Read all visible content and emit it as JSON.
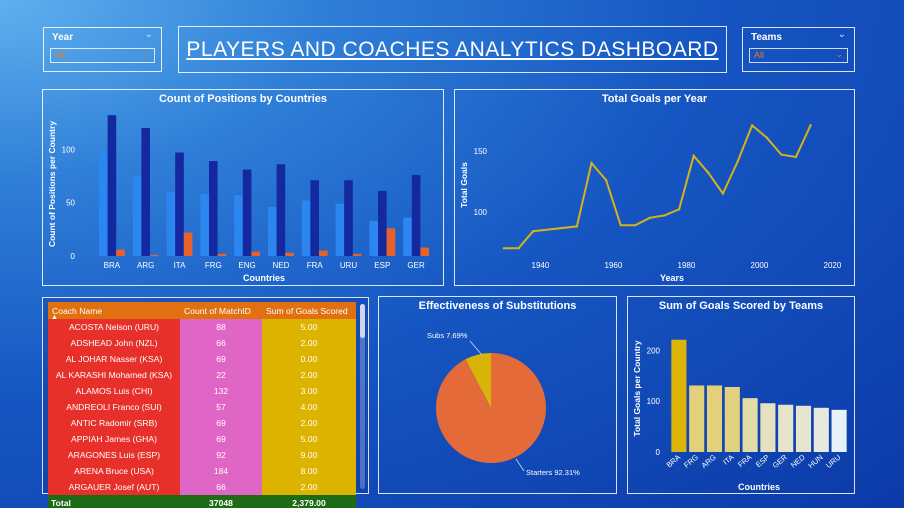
{
  "title": "PLAYERS AND COACHES ANALYTICS DASHBOARD",
  "slicers": {
    "year": {
      "label": "Year",
      "value": "All"
    },
    "teams": {
      "label": "Teams",
      "value": "All"
    }
  },
  "colors": {
    "bar_light": "#2b86f0",
    "bar_dark": "#1428a0",
    "bar_orange": "#e8612a",
    "line_gold": "#d4b21a",
    "pie_orange": "#e56a3a",
    "pie_gold": "#d9b408"
  },
  "positions_chart": {
    "title": "Count of Positions by Countries",
    "xlabel": "Countries",
    "ylabel": "Count of Positions per Country"
  },
  "goals_year_chart": {
    "title": "Total Goals per Year",
    "xlabel": "Years",
    "ylabel": "Total Goals"
  },
  "table": {
    "headers": [
      "Coach Name",
      "Count of MatchID",
      "Sum of Goals Scored"
    ],
    "rows": [
      [
        "ACOSTA Nelson (URU)",
        "88",
        "5.00"
      ],
      [
        "ADSHEAD John (NZL)",
        "66",
        "2.00"
      ],
      [
        "AL JOHAR Nasser (KSA)",
        "69",
        "0.00"
      ],
      [
        "AL KARASHI Mohamed (KSA)",
        "22",
        "2.00"
      ],
      [
        "ALAMOS Luis (CHI)",
        "132",
        "3.00"
      ],
      [
        "ANDREOLI Franco (SUI)",
        "57",
        "4.00"
      ],
      [
        "ANTIC Radomir (SRB)",
        "69",
        "2.00"
      ],
      [
        "APPIAH James (GHA)",
        "69",
        "5.00"
      ],
      [
        "ARAGONES Luis (ESP)",
        "92",
        "9.00"
      ],
      [
        "ARENA Bruce (USA)",
        "184",
        "8.00"
      ],
      [
        "ARGAUER Josef (AUT)",
        "66",
        "2.00"
      ]
    ],
    "total": [
      "Total",
      "37048",
      "2,379.00"
    ]
  },
  "pie_chart": {
    "title": "Effectiveness of Substitutions",
    "labels": [
      "Subs 7.69%",
      "Starters 92.31%"
    ]
  },
  "teams_chart": {
    "title": "Sum of Goals Scored by Teams",
    "xlabel": "Countries",
    "ylabel": "Total Goals per Country"
  },
  "chart_data": [
    {
      "type": "bar",
      "title": "Count of Positions by Countries",
      "xlabel": "Countries",
      "ylabel": "Count of Positions per Country",
      "categories": [
        "BRA",
        "ARG",
        "ITA",
        "FRG",
        "ENG",
        "NED",
        "FRA",
        "URU",
        "ESP",
        "GER"
      ],
      "series": [
        {
          "values": [
            97,
            75,
            60,
            58,
            57,
            46,
            52,
            49,
            33,
            36
          ]
        },
        {
          "values": [
            132,
            120,
            97,
            89,
            81,
            86,
            71,
            71,
            61,
            76
          ]
        },
        {
          "values": [
            6,
            1,
            22,
            2,
            4,
            3,
            5,
            2,
            26,
            8
          ]
        }
      ],
      "yticks": [
        0,
        50,
        100
      ],
      "ylim": [
        0,
        135
      ],
      "legend": "none",
      "grid": false
    },
    {
      "type": "line",
      "title": "Total Goals per Year",
      "xlabel": "Years",
      "ylabel": "Total Goals",
      "x": [
        1930,
        1934,
        1938,
        1950,
        1954,
        1958,
        1962,
        1966,
        1970,
        1974,
        1978,
        1982,
        1986,
        1990,
        1994,
        1998,
        2002,
        2006,
        2010,
        2014
      ],
      "y": [
        70,
        70,
        84,
        88,
        140,
        126,
        89,
        89,
        95,
        97,
        102,
        146,
        132,
        115,
        141,
        171,
        161,
        147,
        145,
        171
      ],
      "xticks": [
        1940,
        1960,
        1980,
        2000,
        2020
      ],
      "yticks": [
        100,
        150
      ],
      "xlim": [
        1927,
        2024
      ],
      "ylim": [
        62,
        182
      ],
      "grid": false
    },
    {
      "type": "pie",
      "title": "Effectiveness of Substitutions",
      "labels": [
        "Subs",
        "Starters"
      ],
      "values": [
        7.69,
        92.31
      ]
    },
    {
      "type": "bar",
      "title": "Sum of Goals Scored by Teams",
      "xlabel": "Countries",
      "ylabel": "Total Goals per Country",
      "categories": [
        "BRA",
        "FRG",
        "ARG",
        "ITA",
        "FRA",
        "ESP",
        "GER",
        "NED",
        "HUN",
        "URU"
      ],
      "values": [
        221,
        131,
        131,
        128,
        106,
        96,
        93,
        91,
        87,
        83
      ],
      "yticks": [
        0,
        100,
        200
      ],
      "ylim": [
        0,
        250
      ],
      "legend": "none",
      "grid": false
    }
  ]
}
